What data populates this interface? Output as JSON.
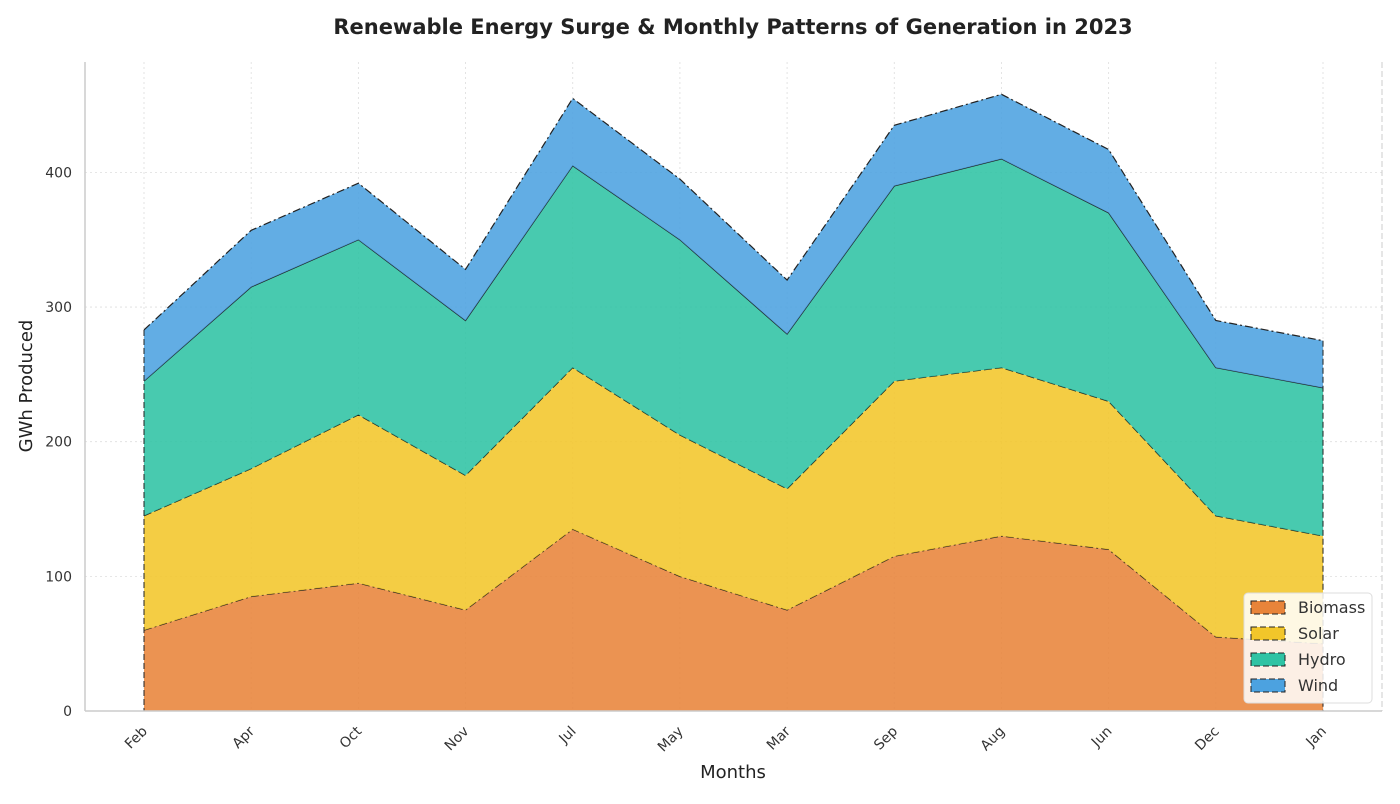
{
  "chart_data": {
    "type": "area",
    "stacked": true,
    "title": "Renewable Energy Surge & Monthly Patterns of Generation in 2023",
    "xlabel": "Months",
    "ylabel": "GWh Produced",
    "categories": [
      "Feb",
      "Apr",
      "Oct",
      "Nov",
      "Jul",
      "May",
      "Mar",
      "Sep",
      "Aug",
      "Jun",
      "Dec",
      "Jan"
    ],
    "ylim": [
      0,
      482
    ],
    "yticks": [
      0,
      100,
      200,
      300,
      400
    ],
    "grid": true,
    "legend_position": "bottom-right",
    "series": [
      {
        "name": "Biomass",
        "color": "#E8843A",
        "values": [
          60,
          85,
          95,
          75,
          135,
          100,
          75,
          115,
          130,
          120,
          55,
          50
        ]
      },
      {
        "name": "Solar",
        "color": "#F2C62A",
        "values": [
          85,
          95,
          125,
          100,
          120,
          105,
          90,
          130,
          125,
          110,
          90,
          80
        ]
      },
      {
        "name": "Hydro",
        "color": "#2FC3A4",
        "values": [
          100,
          135,
          130,
          115,
          150,
          145,
          115,
          145,
          155,
          140,
          110,
          110
        ]
      },
      {
        "name": "Wind",
        "color": "#4CA2E0",
        "values": [
          38,
          42,
          42,
          38,
          50,
          45,
          40,
          45,
          48,
          47,
          35,
          35
        ]
      }
    ]
  }
}
